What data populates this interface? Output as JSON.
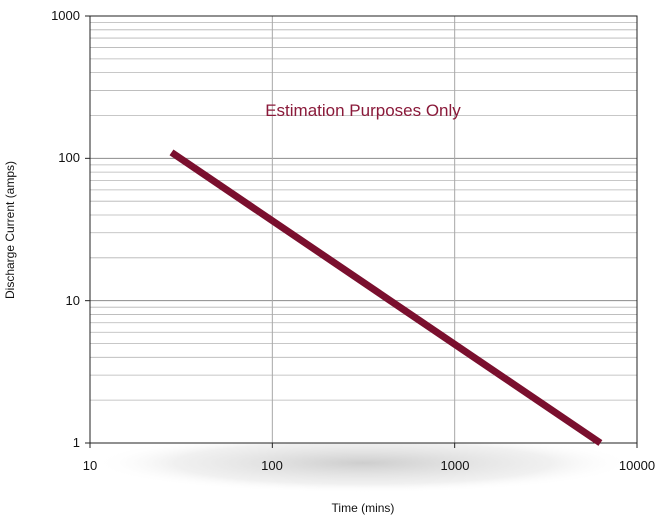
{
  "chart_data": {
    "type": "line",
    "title": "",
    "xlabel": "Time (mins)",
    "ylabel": "Discharge Current (amps)",
    "x_scale": "log",
    "y_scale": "log",
    "xlim": [
      10,
      10000
    ],
    "ylim": [
      1,
      1000
    ],
    "x_ticks": [
      "10",
      "100",
      "1000",
      "10000"
    ],
    "y_ticks": [
      "1",
      "10",
      "100",
      "1000"
    ],
    "grid": true,
    "legend": "none",
    "annotation": "Estimation Purposes Only",
    "series": [
      {
        "x": [
          28,
          6300
        ],
        "y": [
          110,
          1
        ],
        "color": "#7a0f2e"
      }
    ],
    "colors": {
      "line": "#7a0f2e",
      "annotation": "#8a1a3a",
      "grid": "#b5b5b5",
      "axis": "#222222"
    }
  }
}
